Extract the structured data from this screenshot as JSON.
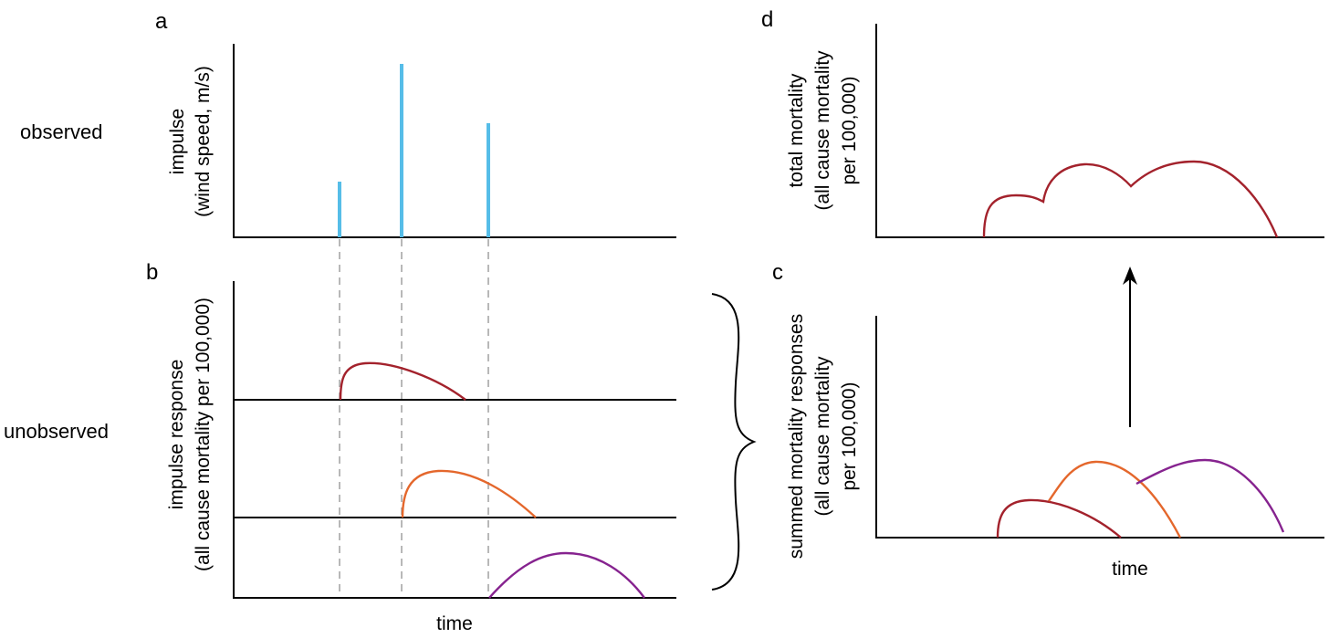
{
  "panels": {
    "a": "a",
    "b": "b",
    "c": "c",
    "d": "d"
  },
  "rows": {
    "observed": "observed",
    "unobserved": "unobserved"
  },
  "axes": {
    "a_ylabel_line1": "impulse",
    "a_ylabel_line2": "(wind speed, m/s)",
    "b_ylabel_line1": "impulse response",
    "b_ylabel_line2": "(all cause mortality per 100,000)",
    "b_xlabel": "time",
    "c_ylabel_line1": "summed mortality responses",
    "c_ylabel_line2": "(all cause mortality",
    "c_ylabel_line3": "per 100,000)",
    "c_xlabel": "time",
    "d_ylabel_line1": "total mortality",
    "d_ylabel_line2": "(all cause mortality",
    "d_ylabel_line3": "per 100,000)"
  },
  "colors": {
    "impulse": "#56bde8",
    "response1": "#a3222c",
    "response2": "#e4672c",
    "response3": "#86238f",
    "axis": "#000000",
    "guide": "#a6a6a6"
  },
  "icons": {
    "brace": "right-curly-brace",
    "arrow": "up-arrow"
  }
}
